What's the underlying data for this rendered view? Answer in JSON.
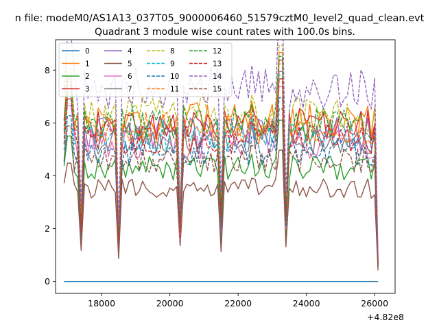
{
  "figure": {
    "suptitle": "n file: modeM0/AS1A13_037T05_9000006460_51579cztM0_level2_quad_clean.evt",
    "title": "Quadrant 3 module wise count rates with 100.0s bins.",
    "x_offset_label": "+4.82e8",
    "x_ticks": [
      "18000",
      "20000",
      "22000",
      "24000",
      "26000"
    ],
    "y_ticks": [
      "0",
      "2",
      "4",
      "6",
      "8"
    ]
  },
  "chart_data": {
    "type": "line",
    "title": "Quadrant 3 module wise count rates with 100.0s bins.",
    "xlabel": "",
    "ylabel": "",
    "x_offset": 482000000,
    "xlim": [
      16650,
      26600
    ],
    "ylim": [
      -0.45,
      9.15
    ],
    "x_ticks": [
      18000,
      20000,
      22000,
      24000,
      26000
    ],
    "y_ticks": [
      0,
      2,
      4,
      6,
      8
    ],
    "grid": false,
    "legend_position": "upper-left",
    "legend_columns": 4,
    "legend": [
      "0",
      "1",
      "2",
      "3",
      "4",
      "5",
      "6",
      "7",
      "8",
      "9",
      "10",
      "11",
      "12",
      "13",
      "14",
      "15"
    ],
    "series": [
      {
        "name": "0",
        "color": "#1f77b4",
        "style": "solid",
        "level": 0.0
      },
      {
        "name": "1",
        "color": "#ff7f0e",
        "style": "solid",
        "level": 6.1
      },
      {
        "name": "2",
        "color": "#2ca02c",
        "style": "solid",
        "level": 4.3
      },
      {
        "name": "3",
        "color": "#d62728",
        "style": "solid",
        "level": 5.9
      },
      {
        "name": "4",
        "color": "#9467bd",
        "style": "solid",
        "level": 5.6
      },
      {
        "name": "5",
        "color": "#8c564b",
        "style": "solid",
        "level": 3.5
      },
      {
        "name": "6",
        "color": "#e377c2",
        "style": "solid",
        "level": 5.2
      },
      {
        "name": "7",
        "color": "#7f7f7f",
        "style": "solid",
        "level": 5.4
      },
      {
        "name": "8",
        "color": "#bcbd22",
        "style": "dashed",
        "level": 6.3
      },
      {
        "name": "9",
        "color": "#17becf",
        "style": "dashed",
        "level": 5.5
      },
      {
        "name": "10",
        "color": "#1f77b4",
        "style": "dashed",
        "level": 4.9
      },
      {
        "name": "11",
        "color": "#ff7f0e",
        "style": "dashed",
        "level": 5.8
      },
      {
        "name": "12",
        "color": "#2ca02c",
        "style": "dashed",
        "level": 6.0
      },
      {
        "name": "13",
        "color": "#d62728",
        "style": "dashed",
        "level": 5.4
      },
      {
        "name": "14",
        "color": "#9467bd",
        "style": "dashed",
        "level": 7.3
      },
      {
        "name": "15",
        "color": "#8c564b",
        "style": "dashed",
        "level": 4.6
      }
    ],
    "features": {
      "x_start": 16900,
      "x_end": 26150,
      "bin": 100,
      "dips": [
        {
          "x": 17400,
          "factor": 0.35
        },
        {
          "x": 18500,
          "factor": 0.27
        },
        {
          "x": 20300,
          "factor": 0.37
        },
        {
          "x": 21500,
          "factor": 0.4
        },
        {
          "x": 23400,
          "factor": 0.42
        }
      ],
      "spikes": [
        {
          "x": 17050,
          "factor": 1.28
        },
        {
          "x": 22400,
          "factor": 1.12
        },
        {
          "x": 23250,
          "factor": 1.42
        }
      ],
      "falloff": [
        {
          "x": 25950,
          "factor": 0.95
        },
        {
          "x": 26050,
          "factor": 0.5
        },
        {
          "x": 26100,
          "factor": 0.12
        },
        {
          "x": 26150,
          "factor": 0.03
        }
      ]
    }
  }
}
